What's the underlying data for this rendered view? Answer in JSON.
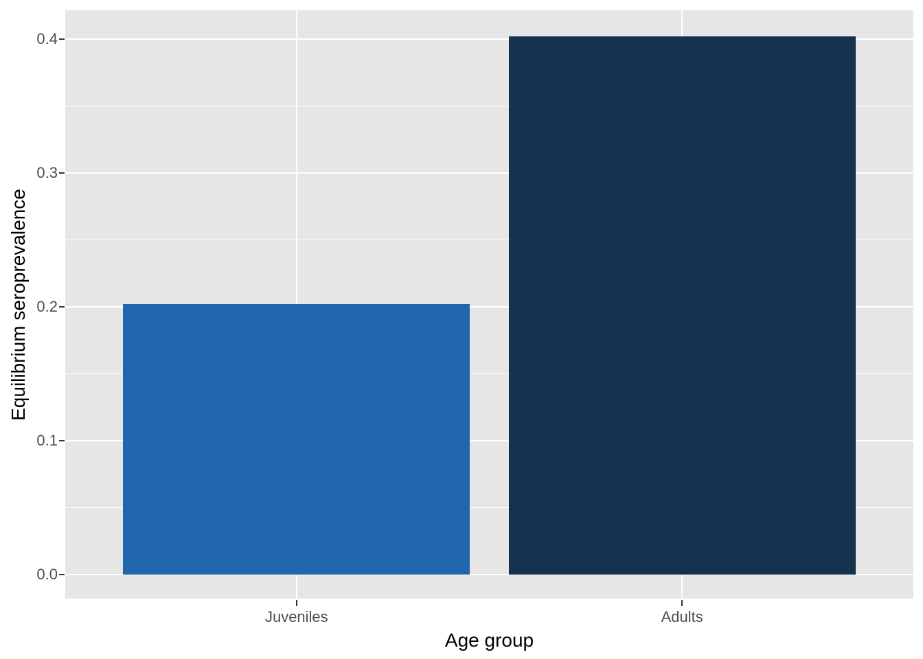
{
  "chart_data": {
    "type": "bar",
    "title": "",
    "xlabel": "Age group",
    "ylabel": "Equilibrium seroprevalence",
    "categories": [
      "Juveniles",
      "Adults"
    ],
    "values": [
      0.202,
      0.402
    ],
    "bar_colors": [
      "#2166AC",
      "#14324D"
    ],
    "ylim": [
      -0.018,
      0.4215
    ],
    "y_major_ticks": [
      0.0,
      0.1,
      0.2,
      0.3,
      0.4
    ],
    "y_tick_labels": [
      "0.0",
      "0.1",
      "0.2",
      "0.3",
      "0.4"
    ],
    "y_minor_ticks": [
      0.05,
      0.15,
      0.25,
      0.35
    ],
    "grid": true,
    "legend": "none",
    "style": {
      "figure_bg": "#FFFFFF",
      "panel_bg": "#E6E6E6",
      "grid_color": "#FFFFFF",
      "tick_mark_color": "#333333",
      "tick_label_color": "#4D4D4D",
      "axis_title_color": "#000000"
    }
  }
}
